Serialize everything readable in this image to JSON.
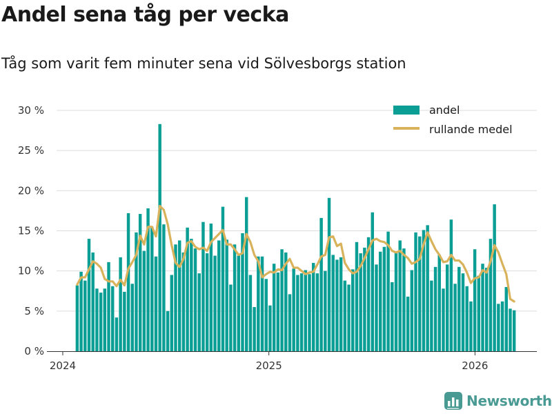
{
  "colors": {
    "bar": "#0a9e95",
    "line": "#d9b25c",
    "grid": "#dddddd",
    "brand": "#4a9a94"
  },
  "brand": {
    "name": "Newsworthy",
    "icon": "chart-logo-icon"
  },
  "chart_data": {
    "type": "bar",
    "title": "Andel sena tåg per vecka",
    "subtitle": "Tåg som varit fem minuter sena vid Sölvesborgs station",
    "xlabel": "",
    "ylabel": "",
    "ylim": [
      0,
      30
    ],
    "yticks": [
      0,
      5,
      10,
      15,
      20,
      25,
      30
    ],
    "ytick_labels": [
      "0 %",
      "5 %",
      "10 %",
      "15 %",
      "20 %",
      "25 %",
      "30 %"
    ],
    "xlim": [
      2023.97,
      2026.3
    ],
    "xticks": [
      2024,
      2025,
      2026
    ],
    "xtick_labels": [
      "2024",
      "2025",
      "2026"
    ],
    "grid": true,
    "legend_position": "top-right",
    "legend": [
      "andel",
      "rullande medel"
    ],
    "x_start": 2024.07,
    "x_step": 0.0191,
    "series": [
      {
        "name": "andel",
        "kind": "bar",
        "values": [
          8.2,
          9.9,
          8.8,
          14.0,
          12.3,
          7.8,
          7.3,
          7.8,
          11.1,
          8.1,
          4.2,
          11.7,
          7.4,
          17.2,
          8.4,
          14.8,
          17.1,
          12.5,
          17.8,
          15.5,
          11.8,
          28.3,
          15.8,
          5.0,
          9.5,
          13.3,
          13.8,
          12.3,
          15.4,
          14.0,
          12.8,
          9.7,
          16.1,
          12.2,
          15.9,
          11.9,
          13.8,
          18.0,
          13.9,
          8.3,
          13.3,
          11.9,
          14.7,
          19.2,
          9.5,
          5.5,
          11.8,
          11.8,
          9.0,
          5.7,
          10.9,
          9.8,
          12.7,
          12.3,
          7.1,
          10.3,
          9.5,
          9.7,
          10.1,
          9.6,
          11.0,
          9.7,
          16.6,
          10.0,
          19.1,
          12.0,
          11.4,
          11.7,
          8.8,
          8.3,
          10.2,
          13.6,
          12.2,
          12.9,
          14.2,
          17.3,
          10.8,
          12.4,
          13.0,
          14.9,
          8.6,
          12.3,
          13.8,
          12.8,
          6.8,
          10.1,
          14.8,
          14.3,
          15.1,
          15.7,
          8.8,
          10.5,
          12.0,
          7.8,
          10.8,
          16.4,
          8.4,
          10.5,
          9.7,
          8.1,
          6.2,
          12.7,
          9.4,
          10.9,
          10.4,
          14.0,
          18.3,
          5.9,
          6.2,
          8.0,
          5.3,
          5.1
        ]
      },
      {
        "name": "rullande medel",
        "kind": "line",
        "values": [
          8.3,
          9.2,
          9.2,
          10.2,
          11.2,
          10.9,
          10.4,
          9.0,
          8.7,
          8.7,
          8.1,
          8.9,
          8.2,
          10.3,
          11.1,
          12.0,
          14.4,
          13.3,
          15.5,
          15.5,
          14.3,
          18.1,
          17.6,
          15.8,
          13.2,
          11.0,
          10.5,
          11.5,
          13.5,
          13.7,
          13.0,
          12.7,
          12.9,
          12.5,
          13.6,
          14.1,
          14.6,
          15.1,
          13.3,
          13.3,
          12.7,
          12.0,
          12.2,
          14.6,
          13.6,
          12.0,
          11.2,
          9.2,
          9.6,
          9.9,
          9.8,
          10.2,
          10.1,
          10.9,
          11.5,
          10.4,
          10.4,
          10.0,
          9.6,
          9.8,
          9.9,
          10.8,
          11.8,
          12.0,
          14.2,
          14.3,
          13.1,
          13.4,
          11.0,
          10.2,
          9.7,
          9.9,
          10.6,
          11.6,
          12.7,
          13.8,
          14.0,
          13.7,
          13.6,
          13.2,
          12.5,
          12.3,
          12.5,
          12.0,
          11.6,
          10.9,
          11.1,
          11.5,
          13.3,
          14.8,
          13.7,
          12.7,
          12.0,
          11.1,
          11.2,
          12.0,
          11.3,
          11.3,
          10.8,
          9.8,
          8.5,
          9.1,
          9.2,
          10.1,
          9.8,
          11.2,
          13.2,
          12.3,
          10.9,
          9.6,
          6.5,
          6.2
        ]
      }
    ]
  }
}
